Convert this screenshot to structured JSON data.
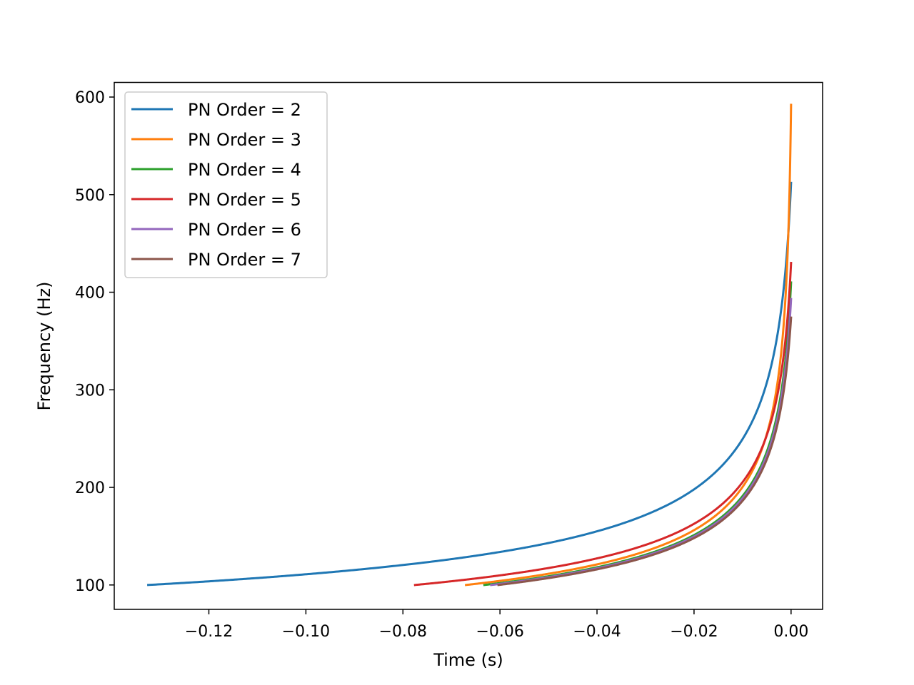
{
  "chart_data": {
    "type": "line",
    "title": "",
    "xlabel": "Time (s)",
    "ylabel": "Frequency (Hz)",
    "xlim": [
      -0.1395,
      0.0065
    ],
    "ylim": [
      75,
      615
    ],
    "xticks": [
      -0.12,
      -0.1,
      -0.08,
      -0.06,
      -0.04,
      -0.02,
      0.0
    ],
    "xtick_labels": [
      "−0.12",
      "−0.10",
      "−0.08",
      "−0.06",
      "−0.04",
      "−0.02",
      "0.00"
    ],
    "yticks": [
      100,
      200,
      300,
      400,
      500,
      600
    ],
    "ytick_labels": [
      "100",
      "200",
      "300",
      "400",
      "500",
      "600"
    ],
    "grid": false,
    "legend_position": "top-left",
    "series": [
      {
        "name": "PN Order = 2",
        "color": "#1f77b4",
        "t_start": -0.1325,
        "f_end": 512
      },
      {
        "name": "PN Order = 3",
        "color": "#ff7f0e",
        "t_start": -0.067,
        "f_end": 592
      },
      {
        "name": "PN Order = 4",
        "color": "#2ca02c",
        "t_start": -0.0632,
        "f_end": 410
      },
      {
        "name": "PN Order = 5",
        "color": "#d62728",
        "t_start": -0.0775,
        "f_end": 430
      },
      {
        "name": "PN Order = 6",
        "color": "#9467bd",
        "t_start": -0.0618,
        "f_end": 393
      },
      {
        "name": "PN Order = 7",
        "color": "#8c564b",
        "t_start": -0.0603,
        "f_end": 374
      }
    ]
  }
}
